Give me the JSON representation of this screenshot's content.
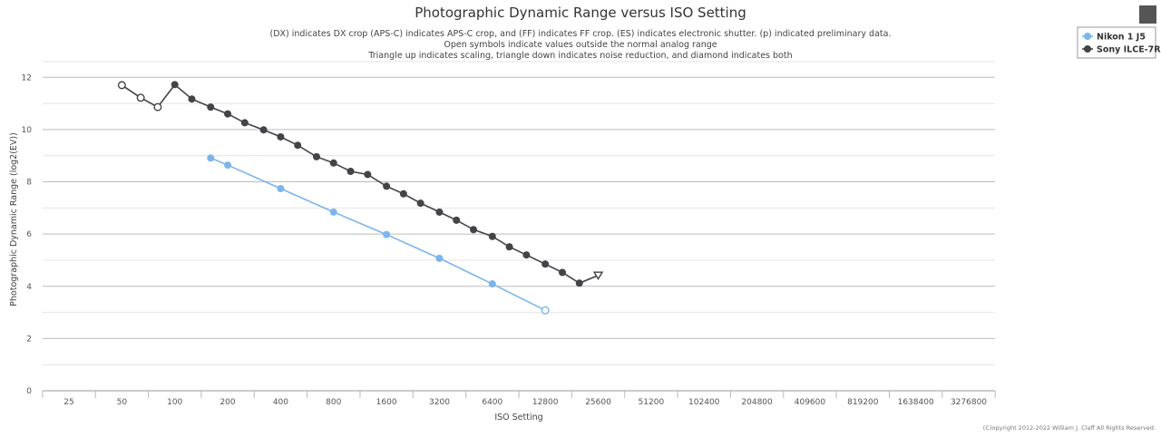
{
  "chart_data": {
    "type": "line",
    "title": "Photographic Dynamic Range versus ISO Setting",
    "subtitle": [
      "(DX) indicates DX crop (APS-C) indicates APS-C crop, and (FF) indicates FF crop. (ES) indicates electronic shutter. (p) indicated preliminary data.",
      "Open symbols indicate values outside the normal analog range",
      "Triangle up indicates scaling, triangle down indicates noise reduction, and diamond indicates both"
    ],
    "xlabel": "ISO Setting",
    "ylabel": "Photographic Dynamic Range (log2(EV))",
    "x_scale": "log2",
    "x_ticks": [
      25,
      50,
      100,
      200,
      400,
      800,
      1600,
      3200,
      6400,
      12800,
      25600,
      51200,
      102400,
      204800,
      409600,
      819200,
      1638400,
      3276800
    ],
    "x_tick_labels": [
      "25",
      "50",
      "100",
      "200",
      "400",
      "800",
      "1600",
      "3200",
      "6400",
      "12800",
      "25600",
      "51200",
      "102400",
      "204800",
      "409600",
      "819200",
      "1638400",
      "3276800"
    ],
    "y_ticks": [
      0,
      2,
      4,
      6,
      8,
      10,
      12
    ],
    "ylim": [
      0,
      12.6
    ],
    "grid": true,
    "legend_position": "top-right",
    "series": [
      {
        "name": "Nikon 1 J5",
        "color": "#7cb5ec",
        "points": [
          {
            "x": 160,
            "y": 8.91,
            "marker": "circle"
          },
          {
            "x": 200,
            "y": 8.64,
            "marker": "circle"
          },
          {
            "x": 400,
            "y": 7.74,
            "marker": "circle"
          },
          {
            "x": 800,
            "y": 6.84,
            "marker": "circle"
          },
          {
            "x": 1600,
            "y": 5.98,
            "marker": "circle"
          },
          {
            "x": 3200,
            "y": 5.07,
            "marker": "circle"
          },
          {
            "x": 6400,
            "y": 4.09,
            "marker": "circle"
          },
          {
            "x": 12800,
            "y": 3.08,
            "marker": "circle-open"
          }
        ]
      },
      {
        "name": "Sony ILCE-7R",
        "color": "#434348",
        "points": [
          {
            "x": 50,
            "y": 11.7,
            "marker": "circle-open"
          },
          {
            "x": 64,
            "y": 11.22,
            "marker": "circle-open"
          },
          {
            "x": 80,
            "y": 10.86,
            "marker": "circle-open"
          },
          {
            "x": 100,
            "y": 11.72,
            "marker": "circle"
          },
          {
            "x": 125,
            "y": 11.17,
            "marker": "circle"
          },
          {
            "x": 160,
            "y": 10.86,
            "marker": "circle"
          },
          {
            "x": 200,
            "y": 10.6,
            "marker": "circle"
          },
          {
            "x": 250,
            "y": 10.26,
            "marker": "circle"
          },
          {
            "x": 320,
            "y": 9.99,
            "marker": "circle"
          },
          {
            "x": 400,
            "y": 9.72,
            "marker": "circle"
          },
          {
            "x": 500,
            "y": 9.4,
            "marker": "circle"
          },
          {
            "x": 640,
            "y": 8.96,
            "marker": "circle"
          },
          {
            "x": 800,
            "y": 8.72,
            "marker": "circle"
          },
          {
            "x": 1000,
            "y": 8.4,
            "marker": "circle"
          },
          {
            "x": 1250,
            "y": 8.28,
            "marker": "circle"
          },
          {
            "x": 1600,
            "y": 7.83,
            "marker": "circle"
          },
          {
            "x": 2000,
            "y": 7.54,
            "marker": "circle"
          },
          {
            "x": 2500,
            "y": 7.18,
            "marker": "circle"
          },
          {
            "x": 3200,
            "y": 6.84,
            "marker": "circle"
          },
          {
            "x": 4000,
            "y": 6.53,
            "marker": "circle"
          },
          {
            "x": 5000,
            "y": 6.17,
            "marker": "circle"
          },
          {
            "x": 6400,
            "y": 5.91,
            "marker": "circle"
          },
          {
            "x": 8000,
            "y": 5.51,
            "marker": "circle"
          },
          {
            "x": 10000,
            "y": 5.2,
            "marker": "circle"
          },
          {
            "x": 12800,
            "y": 4.85,
            "marker": "circle"
          },
          {
            "x": 16000,
            "y": 4.53,
            "marker": "circle"
          },
          {
            "x": 20000,
            "y": 4.12,
            "marker": "circle"
          },
          {
            "x": 25600,
            "y": 4.42,
            "marker": "triangle-down-open"
          }
        ]
      }
    ]
  },
  "credit": "(C)opyright 2012-2022 William J. Claff All Rights Reserved.",
  "menu": {
    "icon": "hamburger-menu-icon"
  }
}
